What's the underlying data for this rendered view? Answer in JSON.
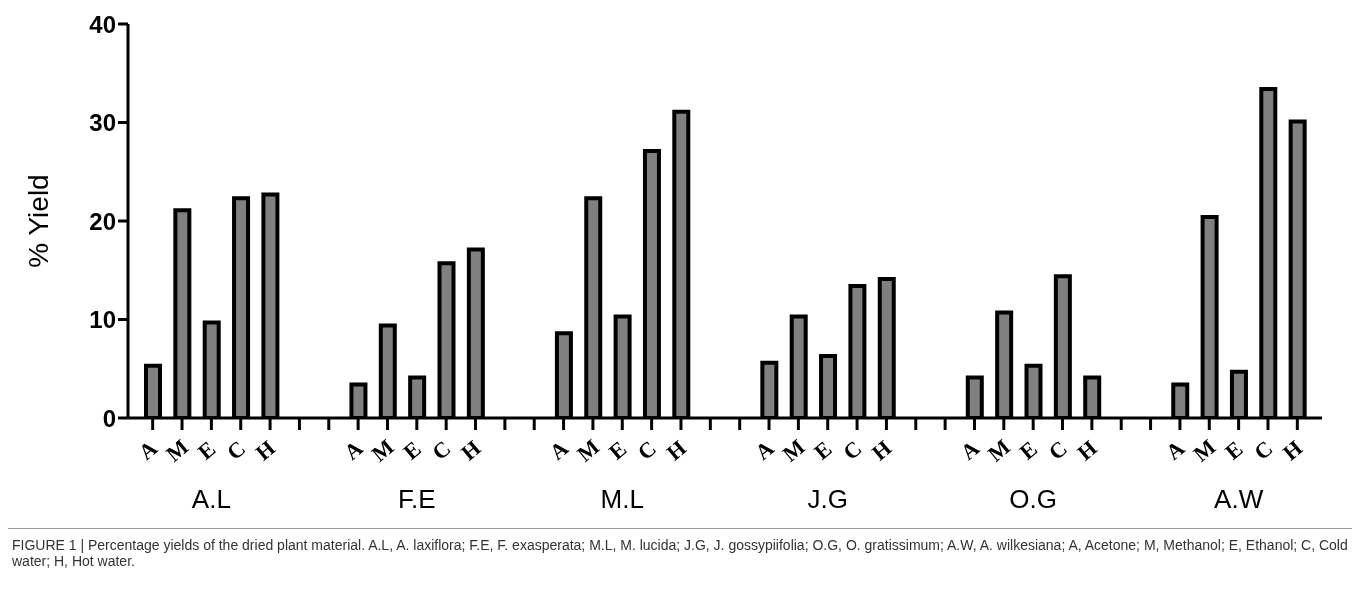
{
  "chart_data": {
    "type": "bar",
    "ylabel": "% Yield",
    "categories": [
      "A",
      "M",
      "E",
      "C",
      "H",
      null,
      null,
      "A",
      "M",
      "E",
      "C",
      "H",
      null,
      null,
      "A",
      "M",
      "E",
      "C",
      "H",
      null,
      null,
      "A",
      "M",
      "E",
      "C",
      "H",
      null,
      null,
      "A",
      "M",
      "E",
      "C",
      "H",
      null,
      null,
      "A",
      "M",
      "E",
      "C",
      "H"
    ],
    "values": [
      5.3,
      21.1,
      9.7,
      22.3,
      22.7,
      null,
      null,
      3.4,
      9.4,
      4.1,
      15.7,
      17.1,
      null,
      null,
      8.6,
      22.3,
      10.3,
      27.1,
      31.1,
      null,
      null,
      5.6,
      10.3,
      6.3,
      13.4,
      14.1,
      null,
      null,
      4.1,
      10.7,
      5.3,
      14.4,
      4.1,
      null,
      null,
      3.4,
      20.4,
      4.7,
      33.4,
      30.1
    ],
    "color": "#808080",
    "ylim": [
      0,
      40
    ],
    "yticks": [
      0,
      10,
      20,
      30,
      40
    ],
    "annotations": [
      "A.L",
      "F.E",
      "M.L",
      "J.G",
      "O.G",
      "A.W",
      "FIGURE 1 | Percentage yields of the dried plant material. A.L, A. laxiflora; F.E, F. exasperata; M.L, M. lucida; J.G, J. gossypiifolia; O.G, O. gratissimum; A.W, A. wilkesiana; A, Acetone; M, Methanol; E, Ethanol; C, Cold water; H, Hot water."
    ]
  }
}
